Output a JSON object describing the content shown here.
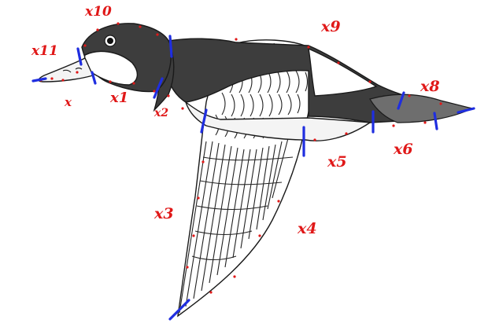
{
  "labels": {
    "x": "x",
    "x1": "x1",
    "x2": "x2",
    "x3": "x3",
    "x4": "x4",
    "x5": "x5",
    "x6": "x6",
    "x8": "x8",
    "x9": "x9",
    "x10": "x10",
    "x11": "x11"
  },
  "colors": {
    "annotation_text": "#e01818",
    "segment_marks": "#1f2ee0",
    "body_dark": "#3d3d3d",
    "body_mid": "#6e6e6e"
  }
}
